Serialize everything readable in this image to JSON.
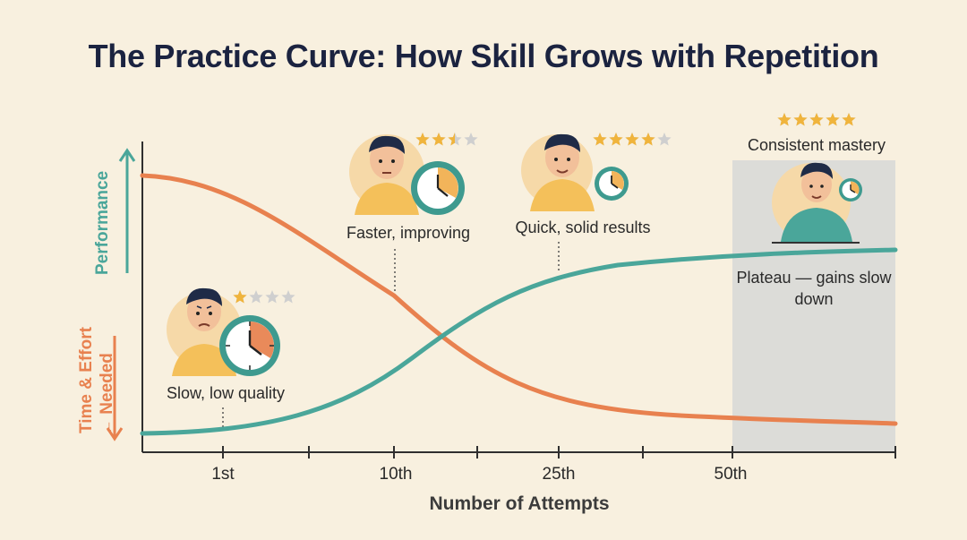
{
  "title": "The Practice Curve: How Skill Grows with Repetition",
  "axes": {
    "y_performance": "Performance",
    "y_effort_line1": "Time & Effort",
    "y_effort_line2": "← Needed",
    "x_label": "Number of Attempts",
    "x_ticks": [
      "1st",
      "10th",
      "25th",
      "50th"
    ]
  },
  "stages": [
    {
      "caption": "Slow, low quality",
      "stars_filled": 1,
      "stars_total": 4
    },
    {
      "caption": "Faster, improving",
      "stars_filled": 2.5,
      "stars_total": 4
    },
    {
      "caption": "Quick, solid results",
      "stars_filled": 4,
      "stars_total": 5
    },
    {
      "caption": "Consistent mastery",
      "stars_filled": 5,
      "stars_total": 5
    }
  ],
  "plateau_note": "Plateau — gains slow down",
  "colors": {
    "performance": "#4aa69a",
    "effort": "#e8814f",
    "star": "#f0b43c",
    "star_empty": "#cfcfcf",
    "plateau_bg": "#dcdcd8",
    "title": "#1b2340"
  }
}
